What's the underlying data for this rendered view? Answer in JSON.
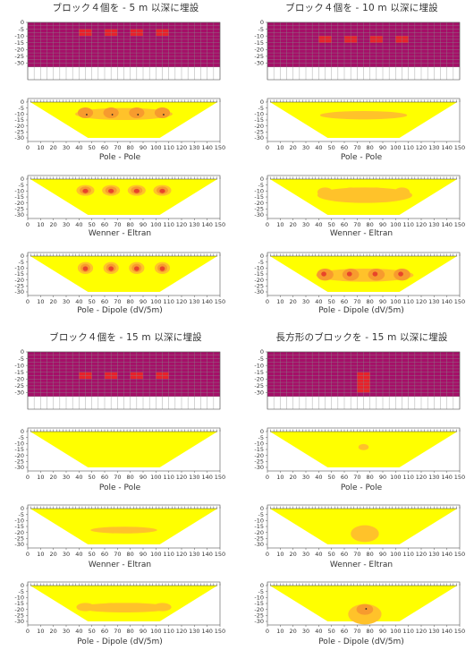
{
  "scenarios": [
    {
      "id": "s1",
      "title": "ブロック４個を - 5 m 以深に埋設",
      "model": {
        "blocks_x": [
          45,
          65,
          85,
          105
        ],
        "depth_top": 5,
        "depth_bottom": 10,
        "block_width": 10
      },
      "panels": [
        {
          "caption": "Pole - Pole"
        },
        {
          "caption": "Wenner - Eltran"
        },
        {
          "caption": "Pole - Dipole (dV/5m)"
        }
      ]
    },
    {
      "id": "s2",
      "title": "ブロック４個を - 10 m 以深に埋設",
      "model": {
        "blocks_x": [
          45,
          65,
          85,
          105
        ],
        "depth_top": 10,
        "depth_bottom": 15,
        "block_width": 10
      },
      "panels": [
        {
          "caption": "Pole - Pole"
        },
        {
          "caption": "Wenner - Eltran"
        },
        {
          "caption": "Pole - Dipole (dV/5m)"
        }
      ]
    },
    {
      "id": "s3",
      "title": "ブロック４個を - 15 m 以深に埋設",
      "model": {
        "blocks_x": [
          45,
          65,
          85,
          105
        ],
        "depth_top": 15,
        "depth_bottom": 20,
        "block_width": 10
      },
      "panels": [
        {
          "caption": "Pole - Pole"
        },
        {
          "caption": "Wenner - Eltran"
        },
        {
          "caption": "Pole - Dipole (dV/5m)"
        }
      ]
    },
    {
      "id": "s4",
      "title": "長方形のブロックを - 15 m 以深に埋設",
      "model": {
        "blocks_x": [
          75
        ],
        "depth_top": 15,
        "depth_bottom": 30,
        "block_width": 10
      },
      "panels": [
        {
          "caption": "Pole - Pole"
        },
        {
          "caption": "Wenner - Eltran"
        },
        {
          "caption": "Pole - Dipole (dV/5m)"
        }
      ]
    }
  ],
  "axes": {
    "x_ticks": [
      "0",
      "10",
      "20",
      "30",
      "40",
      "50",
      "60",
      "70",
      "80",
      "90",
      "100",
      "110",
      "120",
      "130",
      "140",
      "150"
    ],
    "y_ticks": [
      "0",
      "-5",
      "-10",
      "-15",
      "-20",
      "-25",
      "-30"
    ]
  },
  "colors": {
    "background_model": "#a50f68",
    "block": "#e8202a",
    "section_base": "#ffff00",
    "anomaly_low": "#ffc22a",
    "anomaly_mid": "#f79b2e",
    "anomaly_core": "#e8452a"
  }
}
